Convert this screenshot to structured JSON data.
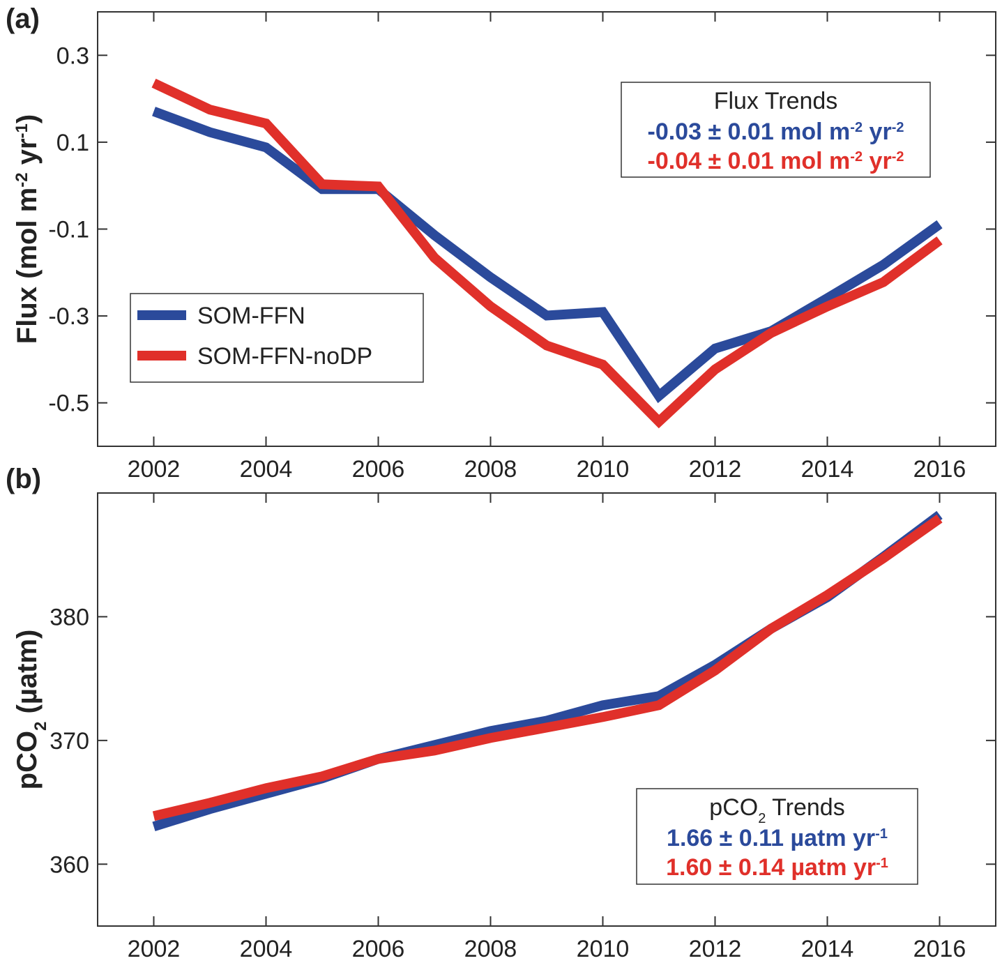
{
  "chart_data": [
    {
      "type": "line",
      "panel_label": "(a)",
      "ylabel": [
        {
          "text": "Flux (mol m"
        },
        {
          "sup": "-2"
        },
        {
          "text": " yr"
        },
        {
          "sup": "-1"
        },
        {
          "text": ")"
        }
      ],
      "x": [
        2002,
        2003,
        2004,
        2005,
        2006,
        2007,
        2008,
        2009,
        2010,
        2011,
        2012,
        2013,
        2014,
        2015,
        2016
      ],
      "xlim": [
        2001,
        2017
      ],
      "xticks": [
        2002,
        2004,
        2006,
        2008,
        2010,
        2012,
        2014,
        2016
      ],
      "ylim": [
        -0.6,
        0.4
      ],
      "yticks": [
        -0.5,
        -0.3,
        -0.1,
        0.1,
        0.3
      ],
      "series": [
        {
          "name": "SOM-FFN",
          "color": "#2b4a9b",
          "values": [
            0.171,
            0.123,
            0.088,
            -0.008,
            -0.008,
            -0.114,
            -0.211,
            -0.299,
            -0.291,
            -0.484,
            -0.375,
            -0.335,
            -0.259,
            -0.182,
            -0.089
          ]
        },
        {
          "name": "SOM-FFN-noDP",
          "color": "#e0302a",
          "values": [
            0.236,
            0.175,
            0.143,
            0.003,
            -0.002,
            -0.166,
            -0.278,
            -0.368,
            -0.412,
            -0.543,
            -0.423,
            -0.339,
            -0.278,
            -0.222,
            -0.126
          ]
        }
      ],
      "legend": "center left",
      "annotation": {
        "corner": "upper right",
        "title": [
          {
            "text": "Flux Trends"
          }
        ],
        "lines": [
          {
            "color": "#2b4a9b",
            "text": [
              {
                "text": "-0.03 ± 0.01 mol m"
              },
              {
                "sup": "-2"
              },
              {
                "text": " yr"
              },
              {
                "sup": "-2"
              }
            ]
          },
          {
            "color": "#e0302a",
            "text": [
              {
                "text": "-0.04 ± 0.01 mol m"
              },
              {
                "sup": "-2"
              },
              {
                "text": " yr"
              },
              {
                "sup": "-2"
              }
            ]
          }
        ]
      }
    },
    {
      "type": "line",
      "panel_label": "(b)",
      "ylabel": [
        {
          "text": "pCO"
        },
        {
          "sub": "2"
        },
        {
          "text": " (µatm)"
        }
      ],
      "x": [
        2002,
        2003,
        2004,
        2005,
        2006,
        2007,
        2008,
        2009,
        2010,
        2011,
        2012,
        2013,
        2014,
        2015,
        2016
      ],
      "xlim": [
        2001,
        2017
      ],
      "xticks": [
        2002,
        2004,
        2006,
        2008,
        2010,
        2012,
        2014,
        2016
      ],
      "ylim": [
        355,
        390
      ],
      "yticks": [
        360,
        370,
        380
      ],
      "series": [
        {
          "name": "SOM-FFN",
          "color": "#2b4a9b",
          "values": [
            363.04,
            364.45,
            365.69,
            366.93,
            368.51,
            369.63,
            370.76,
            371.6,
            372.85,
            373.58,
            376.11,
            379.04,
            381.58,
            384.85,
            388.23
          ]
        },
        {
          "name": "SOM-FFN-noDP",
          "color": "#e0302a",
          "values": [
            363.89,
            364.96,
            366.14,
            367.1,
            368.51,
            369.18,
            370.2,
            371.04,
            371.89,
            372.85,
            375.66,
            379.04,
            381.75,
            384.73,
            387.94
          ]
        }
      ],
      "annotation": {
        "corner": "lower right",
        "title": [
          {
            "text": "pCO"
          },
          {
            "sub": "2"
          },
          {
            "text": " Trends"
          }
        ],
        "lines": [
          {
            "color": "#2b4a9b",
            "text": [
              {
                "text": "1.66 ± 0.11 µatm yr"
              },
              {
                "sup": "-1"
              }
            ]
          },
          {
            "color": "#e0302a",
            "text": [
              {
                "text": "1.60 ± 0.14 µatm yr"
              },
              {
                "sup": "-1"
              }
            ]
          }
        ]
      }
    }
  ]
}
